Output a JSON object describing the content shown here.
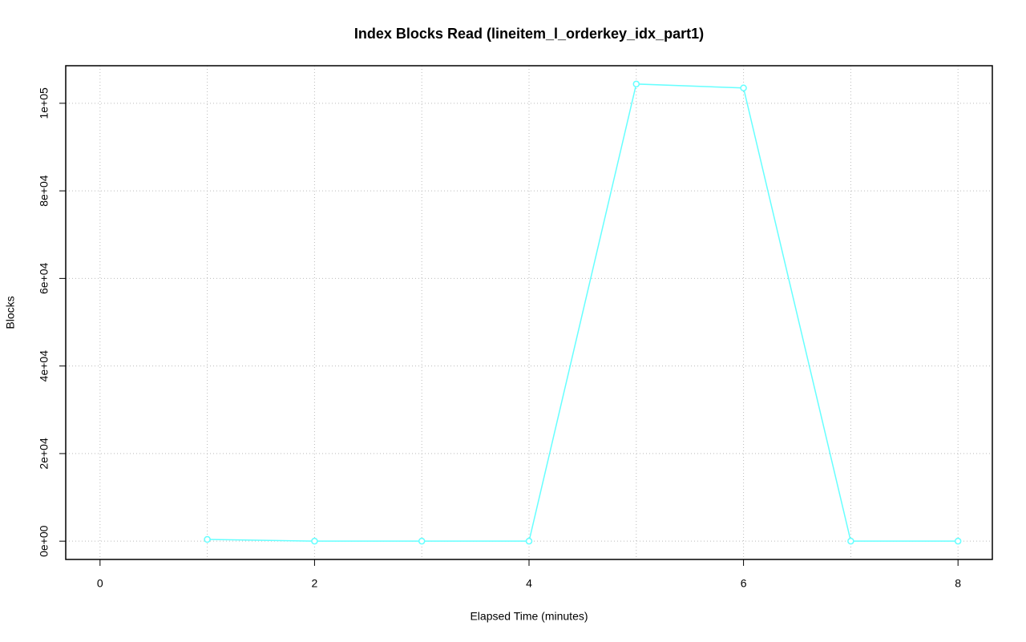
{
  "chart_data": {
    "type": "line",
    "title": "Index Blocks Read (lineitem_l_orderkey_idx_part1)",
    "x_label": "Elapsed Time (minutes)",
    "y_label": "Blocks",
    "x": [
      1,
      2,
      3,
      4,
      5,
      6,
      7,
      8
    ],
    "series": [
      {
        "color": "#66ffff",
        "values": [
          400,
          0,
          0,
          0,
          104400,
          103500,
          0,
          0
        ]
      }
    ],
    "xlim": [
      -0.32,
      8.32
    ],
    "xticks": [
      0,
      2,
      4,
      6,
      8
    ],
    "xgrid": [
      0,
      1,
      2,
      3,
      4,
      5,
      6,
      7,
      8
    ],
    "ylim": [
      -4176,
      108576
    ],
    "yticks": [
      {
        "value": 0,
        "label": "0e+00"
      },
      {
        "value": 20000,
        "label": "2e+04"
      },
      {
        "value": 40000,
        "label": "4e+04"
      },
      {
        "value": 60000,
        "label": "6e+04"
      },
      {
        "value": 80000,
        "label": "8e+04"
      },
      {
        "value": 100000,
        "label": "1e+05"
      }
    ],
    "grid": true
  }
}
